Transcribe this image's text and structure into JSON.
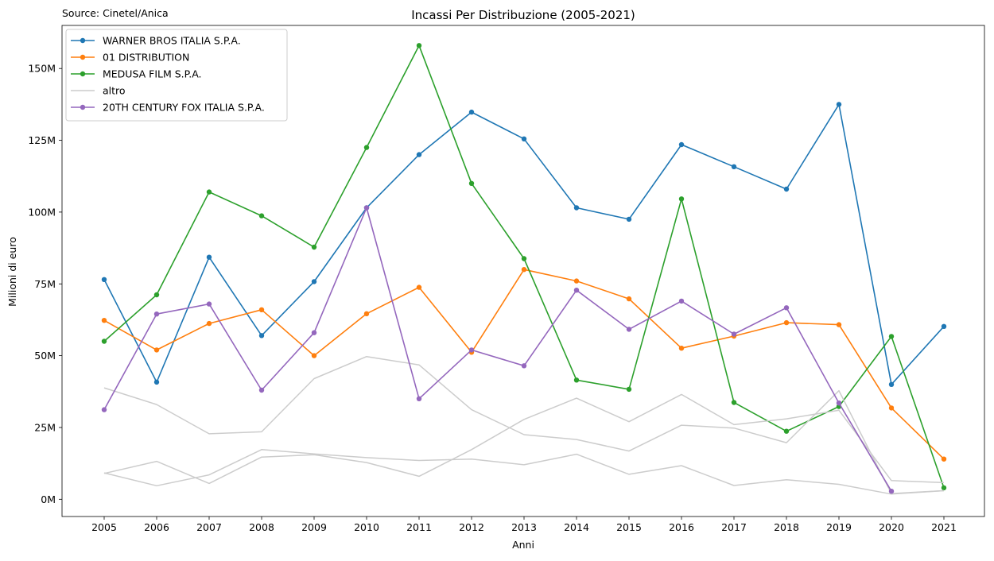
{
  "chart_data": {
    "type": "line",
    "title": "Incassi Per Distribuzione (2005-2021)",
    "source_note": "Source: Cinetel/Anica",
    "xlabel": "Anni",
    "ylabel": "Milioni di euro",
    "x": [
      "2005",
      "2006",
      "2007",
      "2008",
      "2009",
      "2010",
      "2011",
      "2012",
      "2013",
      "2014",
      "2015",
      "2016",
      "2017",
      "2018",
      "2019",
      "2020",
      "2021"
    ],
    "ylim": [
      -6,
      165
    ],
    "yticks": [
      0,
      25,
      50,
      75,
      100,
      125,
      150
    ],
    "ytick_labels": [
      "0M",
      "25M",
      "50M",
      "75M",
      "100M",
      "125M",
      "150M"
    ],
    "grid": false,
    "legend_position": "top-left",
    "series": [
      {
        "name": "WARNER BROS ITALIA S.P.A.",
        "color": "#1f77b4",
        "markers": true,
        "legend": true,
        "values": [
          76.5,
          40.8,
          84.3,
          57.0,
          75.8,
          101.5,
          120.0,
          134.8,
          125.5,
          101.5,
          97.5,
          123.5,
          115.8,
          108.0,
          137.5,
          40.0,
          60.2
        ]
      },
      {
        "name": "01 DISTRIBUTION",
        "color": "#ff7f0e",
        "markers": true,
        "legend": true,
        "values": [
          62.3,
          52.0,
          61.2,
          66.0,
          50.0,
          64.6,
          73.8,
          51.2,
          80.0,
          76.0,
          69.8,
          52.6,
          56.8,
          61.5,
          60.8,
          31.8,
          14.0
        ]
      },
      {
        "name": "MEDUSA FILM S.P.A.",
        "color": "#2ca02c",
        "markers": true,
        "legend": true,
        "values": [
          55.0,
          71.2,
          107.0,
          98.7,
          87.8,
          122.5,
          158.0,
          110.0,
          83.8,
          41.5,
          38.3,
          104.6,
          33.7,
          23.7,
          32.3,
          56.7,
          4.0
        ]
      },
      {
        "name": "altro",
        "color": "#cccccc",
        "markers": false,
        "legend": true,
        "values": [
          38.8,
          33.0,
          22.8,
          23.5,
          42.0,
          49.7,
          46.8,
          31.2,
          22.5,
          20.8,
          16.8,
          25.8,
          24.8,
          19.7,
          37.8,
          2.0,
          3.0
        ]
      },
      {
        "name": "",
        "color": "#cccccc",
        "markers": false,
        "legend": false,
        "values": [
          9.2,
          4.7,
          8.5,
          17.3,
          15.8,
          14.5,
          13.5,
          14.0,
          12.0,
          15.7,
          8.7,
          11.7,
          4.8,
          6.8,
          5.2,
          1.8,
          3.0
        ]
      },
      {
        "name": "",
        "color": "#cccccc",
        "markers": false,
        "legend": false,
        "values": [
          9.0,
          13.2,
          5.5,
          14.7,
          15.5,
          12.8,
          8.0,
          17.3,
          27.8,
          35.2,
          27.0,
          36.5,
          26.0,
          28.0,
          31.0,
          6.5,
          5.8
        ]
      },
      {
        "name": "20TH CENTURY FOX ITALIA S.P.A.",
        "color": "#9467bd",
        "markers": true,
        "legend": true,
        "values": [
          31.2,
          64.5,
          68.0,
          38.0,
          58.0,
          101.5,
          35.0,
          52.0,
          46.5,
          72.8,
          59.2,
          69.0,
          57.5,
          66.7,
          33.5,
          2.8,
          null
        ]
      }
    ]
  }
}
